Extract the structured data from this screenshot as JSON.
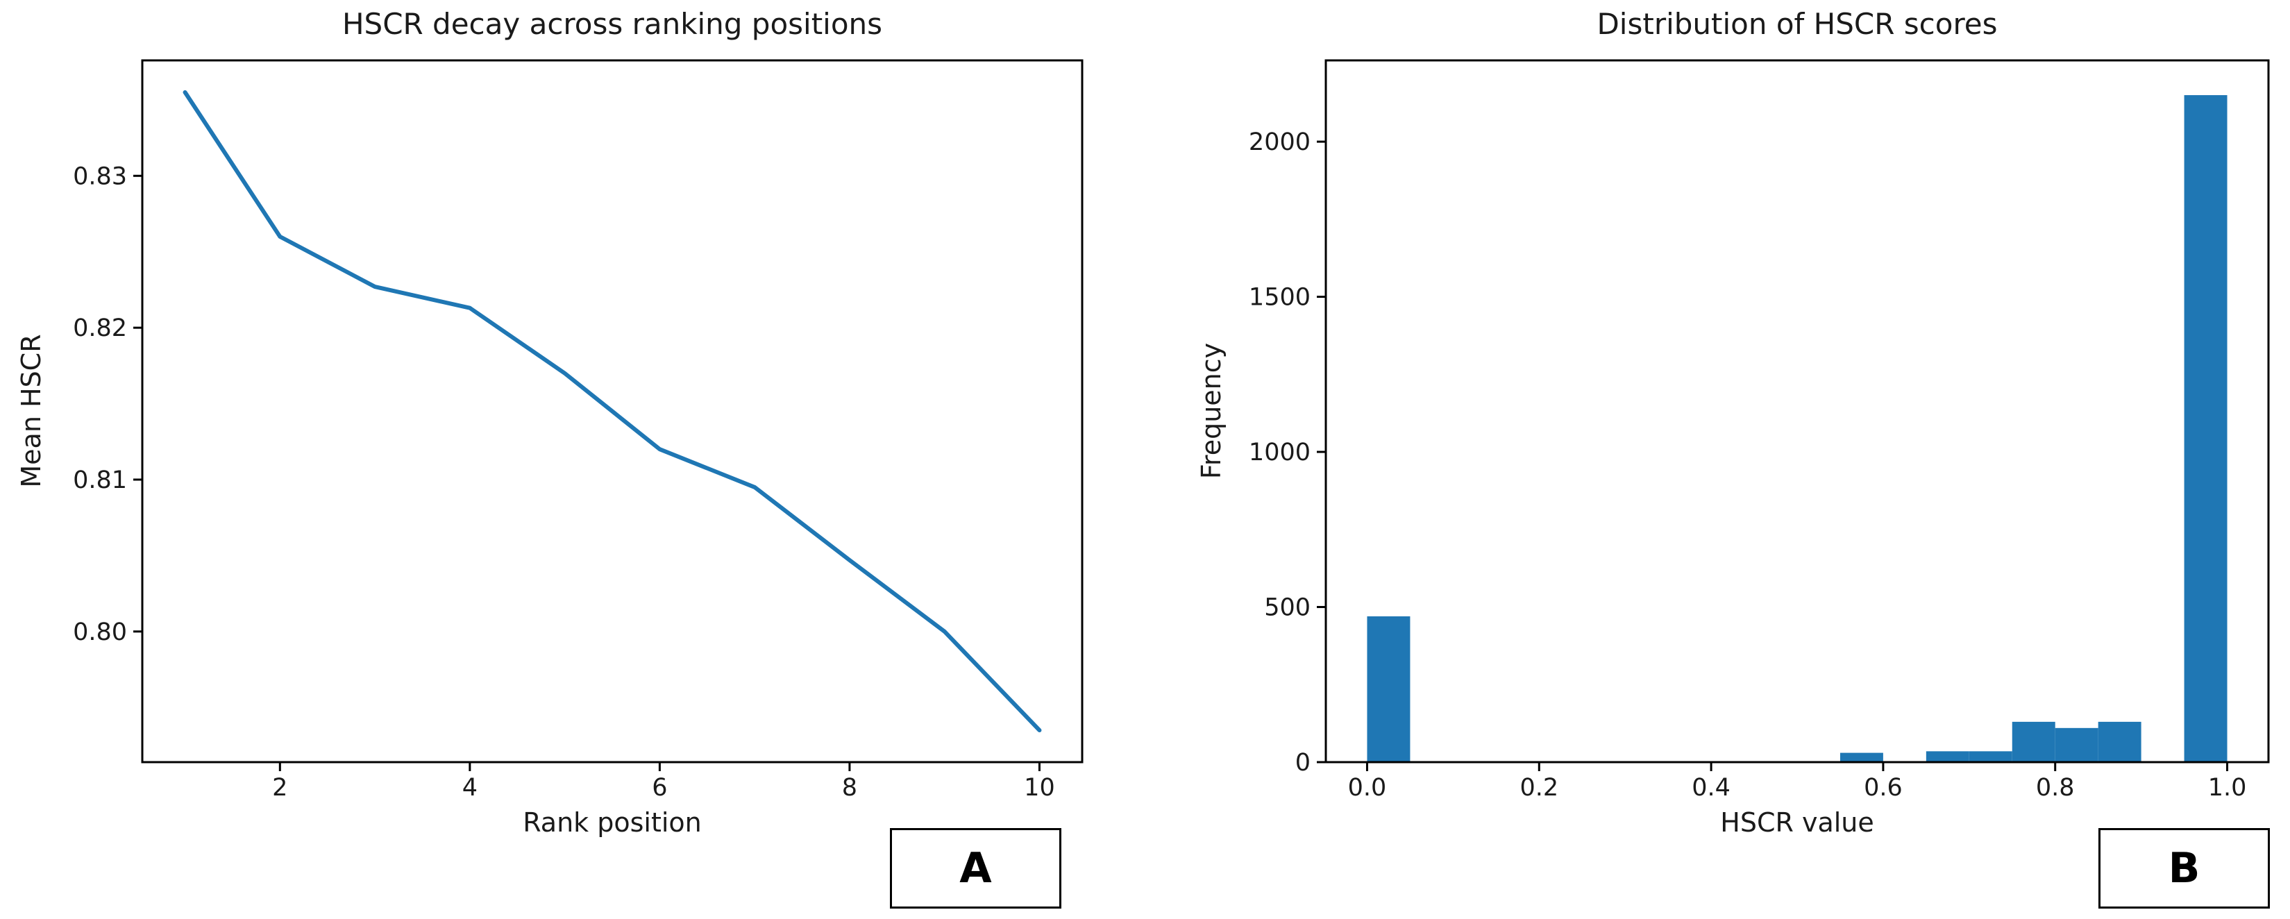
{
  "figure": {
    "background": "#ffffff",
    "accent_color": "#1f77b4",
    "panel_labels": [
      "A",
      "B"
    ]
  },
  "chart_data": [
    {
      "type": "line",
      "panel": "A",
      "title": "HSCR decay across ranking positions",
      "xlabel": "Rank position",
      "ylabel": "Mean HSCR",
      "x": [
        1,
        2,
        3,
        4,
        5,
        6,
        7,
        8,
        9,
        10
      ],
      "y": [
        0.8355,
        0.826,
        0.8227,
        0.8213,
        0.817,
        0.812,
        0.8095,
        0.8047,
        0.8,
        0.7935
      ],
      "xlim": [
        0.55,
        10.45
      ],
      "ylim": [
        0.7914,
        0.8376
      ],
      "xticks": [
        2,
        4,
        6,
        8,
        10
      ],
      "xtick_labels": [
        "2",
        "4",
        "6",
        "8",
        "10"
      ],
      "yticks": [
        0.8,
        0.81,
        0.82,
        0.83
      ],
      "ytick_labels": [
        "0.80",
        "0.81",
        "0.82",
        "0.83"
      ],
      "line_color": "#1f77b4",
      "grid": false,
      "legend": null
    },
    {
      "type": "bar",
      "panel": "B",
      "title": "Distribution of HSCR scores",
      "xlabel": "HSCR value",
      "ylabel": "Frequency",
      "bin_edges": [
        0.0,
        0.05,
        0.1,
        0.15,
        0.2,
        0.25,
        0.3,
        0.35,
        0.4,
        0.45,
        0.5,
        0.55,
        0.6,
        0.65,
        0.7,
        0.75,
        0.8,
        0.85,
        0.9,
        0.95,
        1.0
      ],
      "counts": [
        470,
        0,
        0,
        0,
        0,
        0,
        0,
        0,
        0,
        0,
        0,
        30,
        0,
        35,
        35,
        130,
        110,
        130,
        0,
        2150
      ],
      "xlim": [
        -0.048,
        1.048
      ],
      "ylim": [
        0,
        2262
      ],
      "xticks": [
        0.0,
        0.2,
        0.4,
        0.6,
        0.8,
        1.0
      ],
      "xtick_labels": [
        "0.0",
        "0.2",
        "0.4",
        "0.6",
        "0.8",
        "1.0"
      ],
      "yticks": [
        0,
        500,
        1000,
        1500,
        2000
      ],
      "ytick_labels": [
        "0",
        "500",
        "1000",
        "1500",
        "2000"
      ],
      "bar_color": "#1f77b4",
      "grid": false,
      "legend": null
    }
  ]
}
